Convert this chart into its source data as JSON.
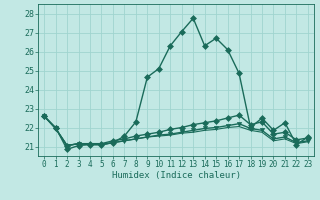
{
  "xlabel": "Humidex (Indice chaleur)",
  "bg_color": "#c2e8e4",
  "line_color": "#1a6b5a",
  "grid_color": "#a0d4cf",
  "xlim": [
    -0.5,
    23.5
  ],
  "ylim": [
    20.5,
    28.5
  ],
  "yticks": [
    21,
    22,
    23,
    24,
    25,
    26,
    27,
    28
  ],
  "xticks": [
    0,
    1,
    2,
    3,
    4,
    5,
    6,
    7,
    8,
    9,
    10,
    11,
    12,
    13,
    14,
    15,
    16,
    17,
    18,
    19,
    20,
    21,
    22,
    23
  ],
  "series": [
    {
      "y": [
        22.6,
        22.0,
        20.85,
        21.05,
        21.1,
        21.1,
        21.2,
        21.55,
        22.3,
        24.65,
        25.1,
        26.3,
        27.05,
        27.75,
        26.3,
        26.7,
        26.1,
        24.85,
        22.0,
        22.5,
        21.85,
        22.25,
        21.1,
        21.5
      ],
      "marker": "D",
      "ms": 3.0,
      "lw": 1.0
    },
    {
      "y": [
        22.6,
        21.95,
        21.05,
        21.15,
        21.15,
        21.15,
        21.3,
        21.4,
        21.55,
        21.65,
        21.75,
        21.9,
        22.0,
        22.15,
        22.25,
        22.35,
        22.5,
        22.65,
        22.15,
        22.3,
        21.65,
        21.75,
        21.35,
        21.45
      ],
      "marker": "D",
      "ms": 3.0,
      "lw": 1.0
    },
    {
      "y": [
        22.6,
        21.95,
        21.05,
        21.15,
        21.1,
        21.1,
        21.2,
        21.3,
        21.4,
        21.5,
        21.6,
        21.65,
        21.75,
        21.85,
        21.95,
        22.0,
        22.1,
        22.2,
        21.95,
        21.85,
        21.4,
        21.5,
        21.2,
        21.3
      ],
      "marker": "v",
      "ms": 3.0,
      "lw": 1.0
    },
    {
      "y": [
        22.6,
        21.95,
        21.05,
        21.15,
        21.1,
        21.1,
        21.2,
        21.3,
        21.4,
        21.5,
        21.55,
        21.6,
        21.7,
        21.75,
        21.85,
        21.9,
        22.0,
        22.05,
        21.85,
        21.75,
        21.3,
        21.4,
        21.15,
        21.25
      ],
      "marker": null,
      "ms": 0,
      "lw": 0.8
    }
  ],
  "fontsize_ticks": 5.5,
  "fontsize_xlabel": 6.5,
  "figsize": [
    3.2,
    2.0
  ],
  "dpi": 100
}
